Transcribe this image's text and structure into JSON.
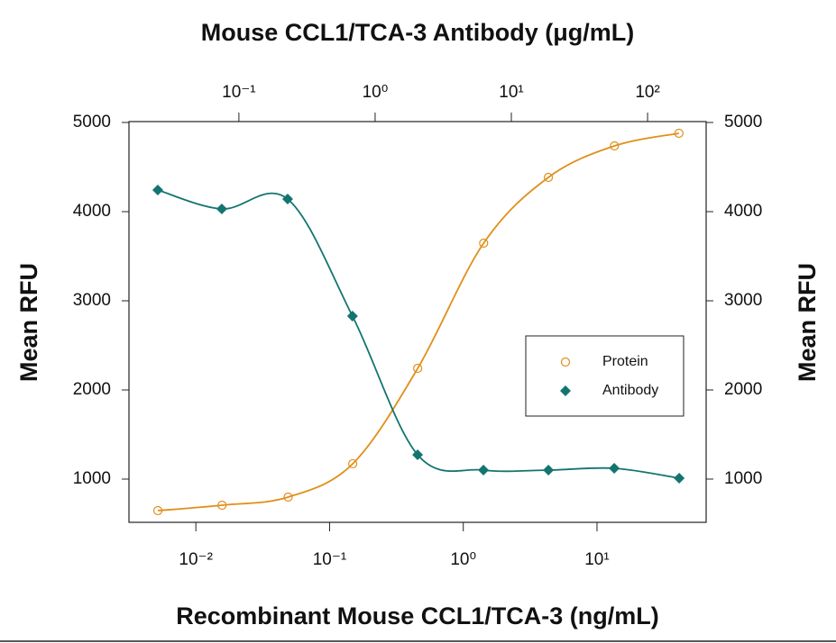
{
  "chart_data": {
    "type": "line",
    "title": "Mouse CCL1/TCA-3 Antibody (μg/mL)",
    "xlabel": "Recombinant Mouse CCL1/TCA-3 (ng/mL)",
    "ylabel": "Mean RFU",
    "y2label": "Mean RFU",
    "xscale": "log",
    "x2scale": "log",
    "xlim": [
      0.00316,
      65.5
    ],
    "xticks": [
      {
        "value": 0.01,
        "label": "10⁻²"
      },
      {
        "value": 0.1,
        "label": "10⁻¹"
      },
      {
        "value": 1,
        "label": "10⁰"
      },
      {
        "value": 10,
        "label": "10¹"
      }
    ],
    "x2lim": [
      0.0156,
      269
    ],
    "x2ticks": [
      {
        "value": 0.1,
        "label": "10⁻¹"
      },
      {
        "value": 1,
        "label": "10⁰"
      },
      {
        "value": 10,
        "label": "10¹"
      },
      {
        "value": 100,
        "label": "10²"
      }
    ],
    "ylim": [
      515,
      5010
    ],
    "yticks": [
      1000,
      2000,
      3000,
      4000,
      5000
    ],
    "y2lim": [
      515,
      5010
    ],
    "y2ticks": [
      1000,
      2000,
      3000,
      4000,
      5000
    ],
    "legend": "right",
    "series": [
      {
        "name": "Protein",
        "color": "#e08f1a",
        "marker": "open-circle",
        "x": [
          0.0052,
          0.0157,
          0.049,
          0.149,
          0.456,
          1.42,
          4.33,
          13.5,
          41
        ],
        "values": [
          646,
          707,
          798,
          1172,
          2242,
          3646,
          4384,
          4737,
          4879
        ]
      },
      {
        "name": "Antibody",
        "color": "#13756f",
        "marker": "diamond",
        "axis": "x2",
        "x": [
          0.0254,
          0.0749,
          0.228,
          0.682,
          2.05,
          6.24,
          18.7,
          56.9,
          170.6
        ],
        "values": [
          4242,
          4030,
          4141,
          2828,
          1273,
          1101,
          1101,
          1121,
          1010
        ]
      }
    ]
  }
}
